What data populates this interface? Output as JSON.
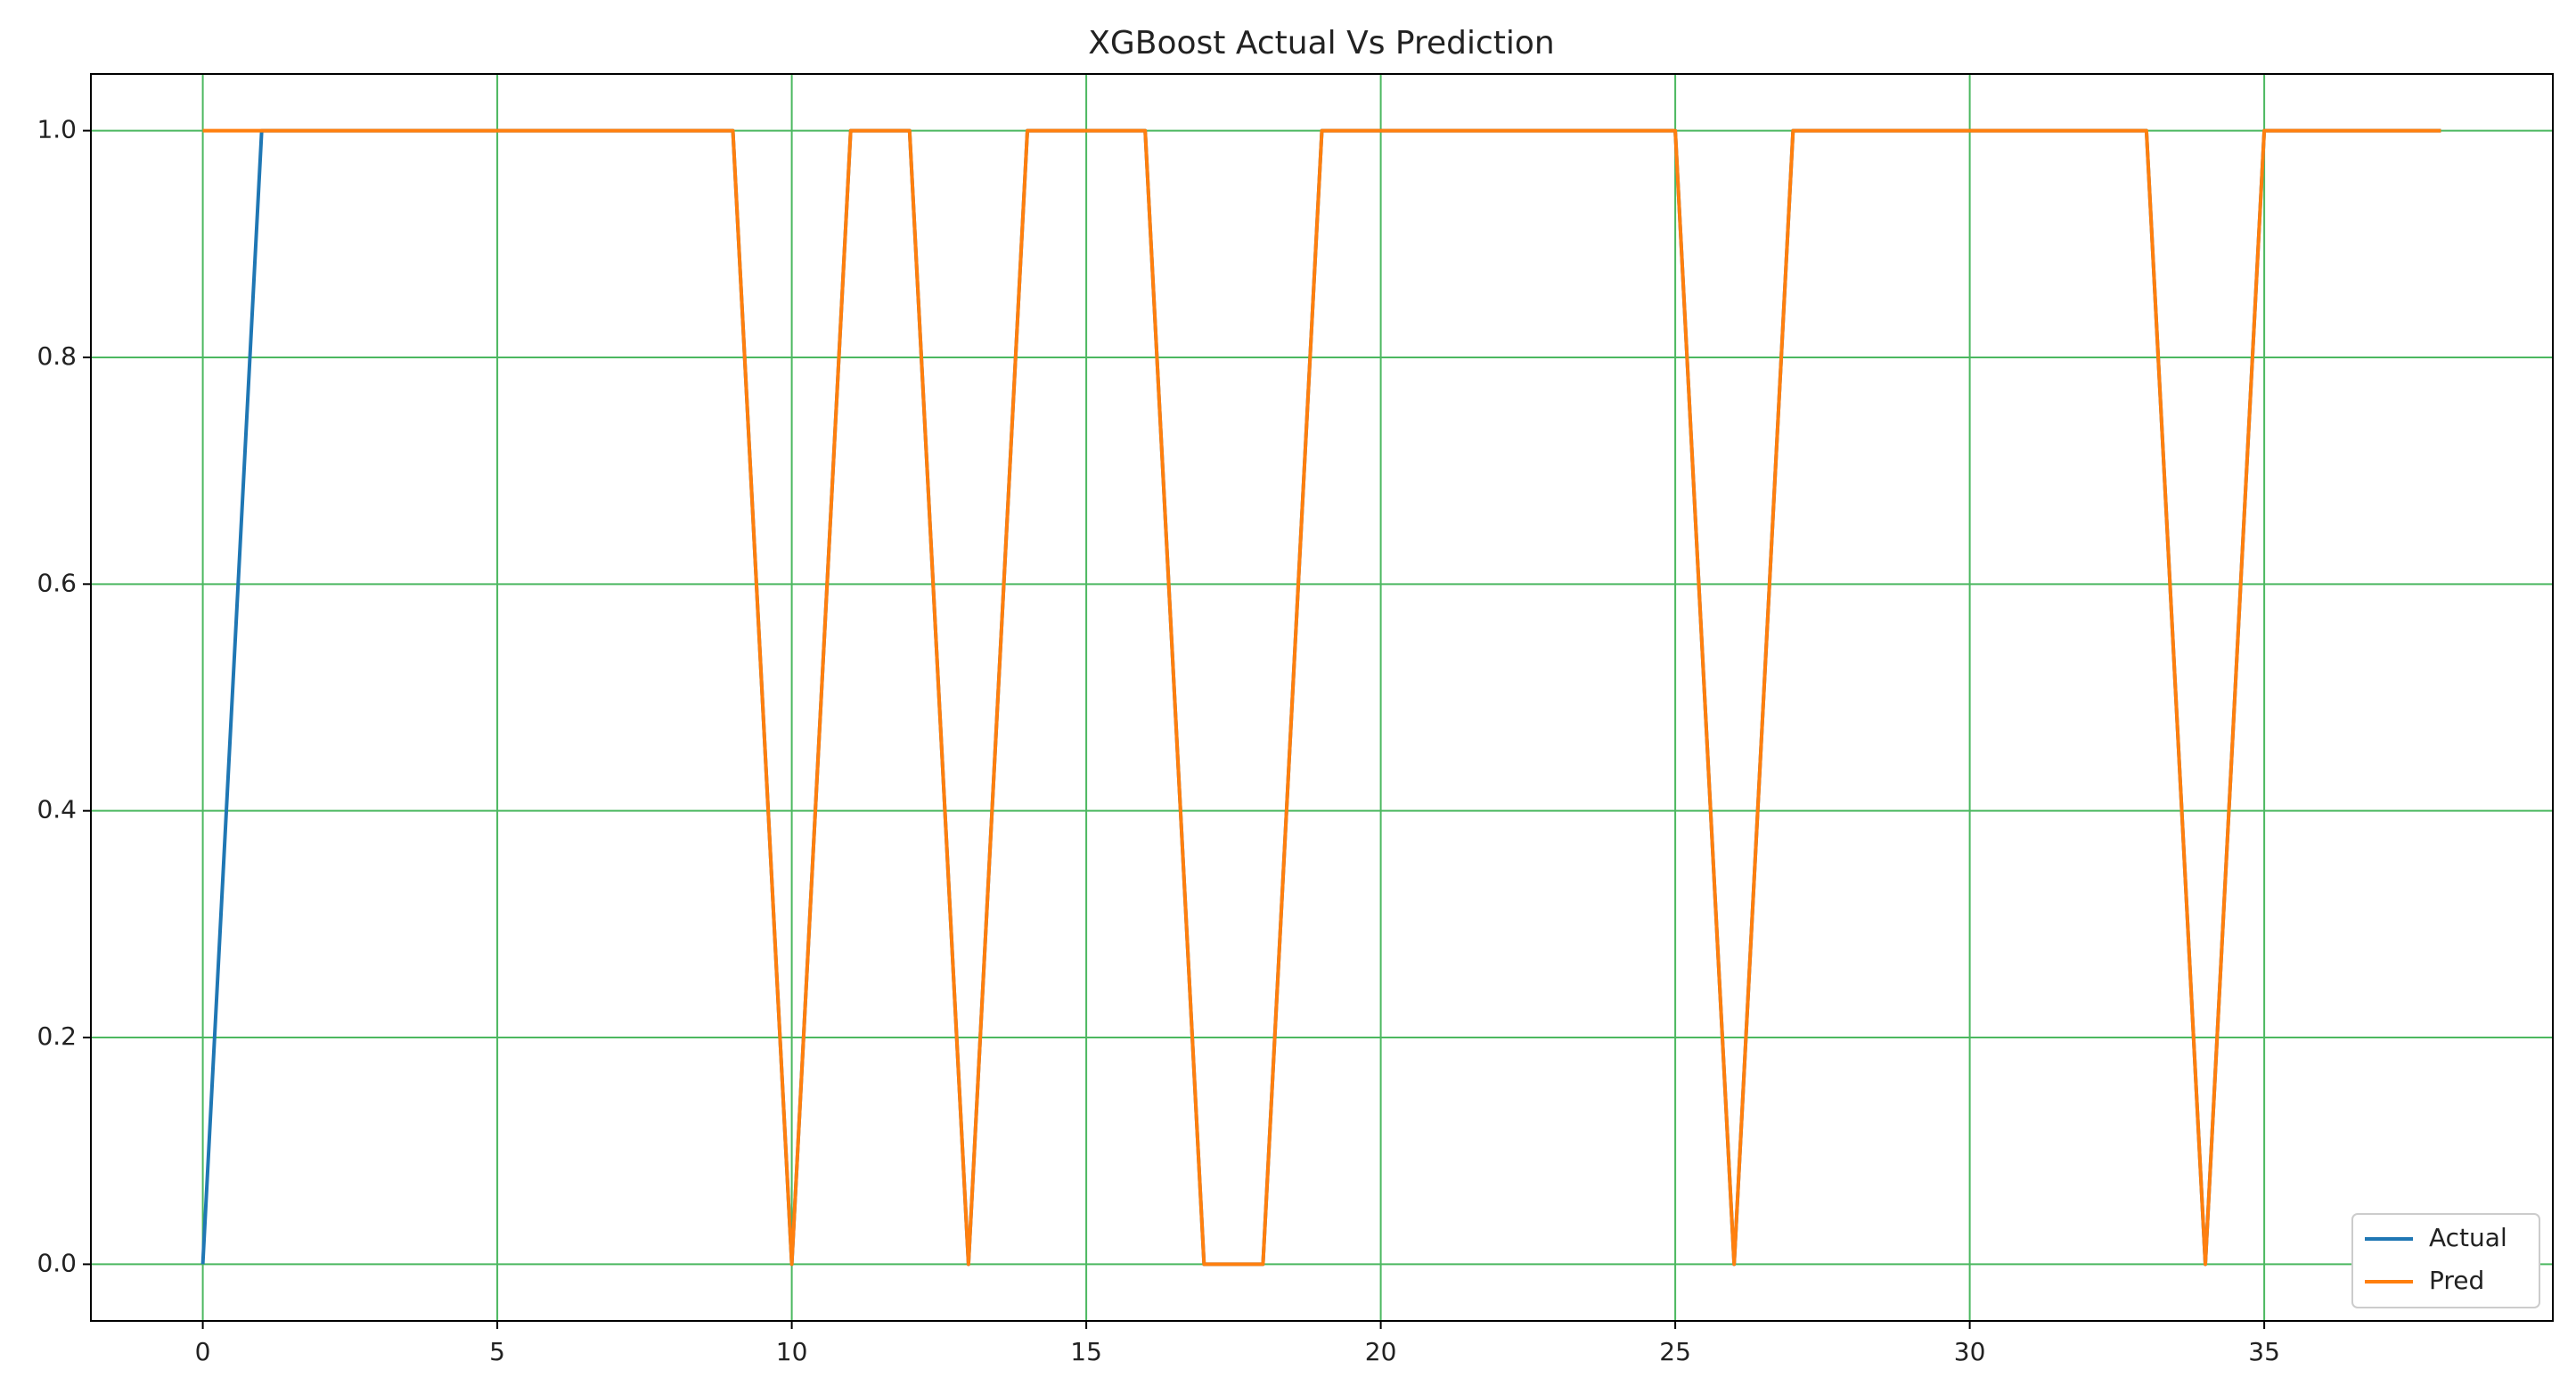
{
  "chart_data": {
    "type": "line",
    "title": "XGBoost Actual Vs Prediction",
    "x": [
      0,
      1,
      2,
      3,
      4,
      5,
      6,
      7,
      8,
      9,
      10,
      11,
      12,
      13,
      14,
      15,
      16,
      17,
      18,
      19,
      20,
      21,
      22,
      23,
      24,
      25,
      26,
      27,
      28,
      29,
      30,
      31,
      32,
      33,
      34,
      35,
      36,
      37,
      38
    ],
    "series": [
      {
        "name": "Actual",
        "color": "#1f77b4",
        "values": [
          0,
          1,
          1,
          1,
          1,
          1,
          1,
          1,
          1,
          1,
          0,
          1,
          1,
          0,
          1,
          1,
          1,
          0,
          0,
          1,
          1,
          1,
          1,
          1,
          1,
          1,
          0,
          1,
          1,
          1,
          1,
          1,
          1,
          1,
          0,
          1,
          1,
          1,
          1
        ]
      },
      {
        "name": "Pred",
        "color": "#ff7f0e",
        "values": [
          1,
          1,
          1,
          1,
          1,
          1,
          1,
          1,
          1,
          1,
          0,
          1,
          1,
          0,
          1,
          1,
          1,
          0,
          0,
          1,
          1,
          1,
          1,
          1,
          1,
          1,
          0,
          1,
          1,
          1,
          1,
          1,
          1,
          1,
          0,
          1,
          1,
          1,
          1
        ]
      }
    ],
    "xlim": [
      -1.9,
      39.9
    ],
    "ylim": [
      -0.05,
      1.05
    ],
    "xticks": [
      0,
      5,
      10,
      15,
      20,
      25,
      30,
      35
    ],
    "yticks": [
      {
        "value": 0,
        "label": "0.0"
      },
      0.2,
      0.4,
      0.6,
      0.8,
      {
        "value": 1,
        "label": "1.0"
      }
    ],
    "grid": true,
    "grid_color": "#4cb860",
    "legend": "lower right"
  }
}
